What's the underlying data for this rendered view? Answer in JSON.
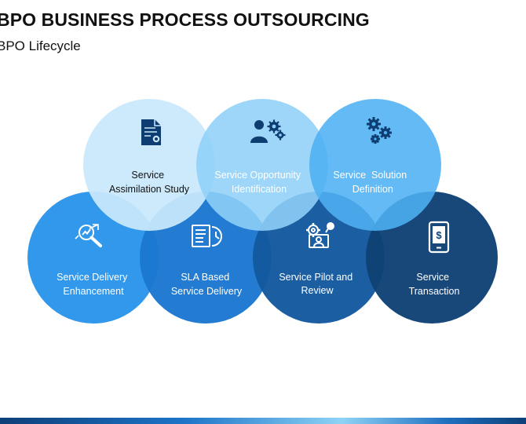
{
  "slide": {
    "title": "BPO BUSINESS PROCESS OUTSOURCING",
    "subtitle": "BPO Lifecycle"
  },
  "stages": [
    {
      "line1": "Service",
      "line2": "Assimilation Study",
      "icon": "certificate-document-icon",
      "color": "#c9e8fc",
      "text_color": "#111111"
    },
    {
      "line1": "Service Opportunity",
      "line2": "Identification",
      "icon": "person-gears-icon",
      "color": "#8fd0f8",
      "text_color": "#ffffff"
    },
    {
      "line1": "Service  Solution",
      "line2": "Definition",
      "icon": "gears-icon",
      "color": "#4fb0f2",
      "text_color": "#ffffff"
    },
    {
      "line1": "Service Delivery",
      "line2": "Enhancement",
      "icon": "magnifier-growth-icon",
      "color": "#3198ec",
      "text_color": "#ffffff"
    },
    {
      "line1": "SLA Based",
      "line2": "Service Delivery",
      "icon": "document-clock-icon",
      "color": "#1c78cf",
      "text_color": "#ffffff"
    },
    {
      "line1": "Service Pilot and",
      "line2": "Review",
      "icon": "gear-presentation-icon",
      "color": "#14599f",
      "text_color": "#ffffff"
    },
    {
      "line1": "Service",
      "line2": "Transaction",
      "icon": "mobile-payment-icon",
      "color": "#0f4275",
      "text_color": "#ffffff"
    }
  ]
}
